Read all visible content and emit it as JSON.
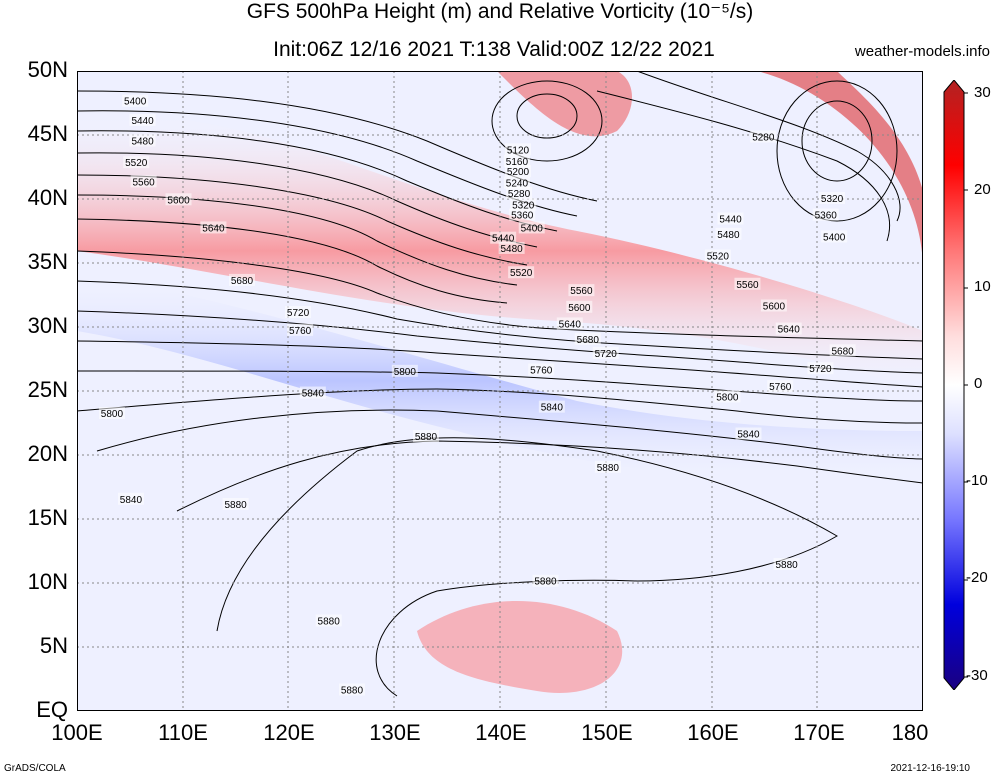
{
  "title_line1": "GFS 500hPa Height (m) and Relative Vorticity (10⁻⁵/s)",
  "title_line2": "Init:06Z 12/16 2021 T:138 Valid:00Z 12/22 2021",
  "website": "weather-models.info",
  "footer_left": "GrADS/COLA",
  "footer_right": "2021-12-16-19:10",
  "lat_labels": [
    "50N",
    "45N",
    "40N",
    "35N",
    "30N",
    "25N",
    "20N",
    "15N",
    "10N",
    "5N",
    "EQ"
  ],
  "lon_labels": [
    "100E",
    "110E",
    "120E",
    "130E",
    "140E",
    "150E",
    "160E",
    "170E",
    "180"
  ],
  "colorbar": {
    "labels": [
      "30",
      "20",
      "10",
      "0",
      "-10",
      "-20",
      "-30"
    ],
    "colors": [
      "#b22222",
      "#ff0000",
      "#ff7777",
      "#ffdddd",
      "#ffffff",
      "#dde0ff",
      "#7777ff",
      "#0000dd",
      "#1a0080"
    ]
  },
  "contour_labels": [
    {
      "text": "5400",
      "lon": 105.5,
      "lat": 47.6
    },
    {
      "text": "5440",
      "lon": 106.2,
      "lat": 46.1
    },
    {
      "text": "5480",
      "lon": 106.2,
      "lat": 44.5
    },
    {
      "text": "5520",
      "lon": 105.6,
      "lat": 42.8
    },
    {
      "text": "5560",
      "lon": 106.3,
      "lat": 41.3
    },
    {
      "text": "5600",
      "lon": 109.6,
      "lat": 39.9
    },
    {
      "text": "5640",
      "lon": 112.9,
      "lat": 37.7
    },
    {
      "text": "5680",
      "lon": 115.6,
      "lat": 33.6
    },
    {
      "text": "5720",
      "lon": 120.9,
      "lat": 31.1
    },
    {
      "text": "5760",
      "lon": 121.1,
      "lat": 29.7
    },
    {
      "text": "5800",
      "lon": 131.0,
      "lat": 26.5
    },
    {
      "text": "5840",
      "lon": 122.3,
      "lat": 24.8
    },
    {
      "text": "5800",
      "lon": 103.3,
      "lat": 23.2
    },
    {
      "text": "5880",
      "lon": 133.0,
      "lat": 21.4
    },
    {
      "text": "5840",
      "lon": 105.1,
      "lat": 16.5
    },
    {
      "text": "5880",
      "lon": 115.0,
      "lat": 16.1
    },
    {
      "text": "5880",
      "lon": 150.2,
      "lat": 19.0
    },
    {
      "text": "5880",
      "lon": 144.3,
      "lat": 10.1
    },
    {
      "text": "5880",
      "lon": 167.1,
      "lat": 11.4
    },
    {
      "text": "5880",
      "lon": 123.8,
      "lat": 7.0
    },
    {
      "text": "5880",
      "lon": 126.0,
      "lat": 1.6
    },
    {
      "text": "5120",
      "lon": 141.7,
      "lat": 43.8
    },
    {
      "text": "5160",
      "lon": 141.6,
      "lat": 42.9
    },
    {
      "text": "5200",
      "lon": 141.7,
      "lat": 42.1
    },
    {
      "text": "5240",
      "lon": 141.6,
      "lat": 41.2
    },
    {
      "text": "5280",
      "lon": 141.8,
      "lat": 40.4
    },
    {
      "text": "5320",
      "lon": 142.2,
      "lat": 39.5
    },
    {
      "text": "5360",
      "lon": 142.1,
      "lat": 38.7
    },
    {
      "text": "5400",
      "lon": 143.0,
      "lat": 37.7
    },
    {
      "text": "5440",
      "lon": 140.3,
      "lat": 36.9
    },
    {
      "text": "5480",
      "lon": 141.1,
      "lat": 36.1
    },
    {
      "text": "5520",
      "lon": 142.0,
      "lat": 34.2
    },
    {
      "text": "5560",
      "lon": 147.7,
      "lat": 32.8
    },
    {
      "text": "5600",
      "lon": 147.5,
      "lat": 31.5
    },
    {
      "text": "5640",
      "lon": 146.6,
      "lat": 30.2
    },
    {
      "text": "5680",
      "lon": 148.3,
      "lat": 29.0
    },
    {
      "text": "5720",
      "lon": 150.0,
      "lat": 27.9
    },
    {
      "text": "5760",
      "lon": 143.9,
      "lat": 26.6
    },
    {
      "text": "5840",
      "lon": 144.9,
      "lat": 23.7
    },
    {
      "text": "5800",
      "lon": 161.5,
      "lat": 24.5
    },
    {
      "text": "5760",
      "lon": 166.5,
      "lat": 25.3
    },
    {
      "text": "5720",
      "lon": 170.3,
      "lat": 26.7
    },
    {
      "text": "5680",
      "lon": 172.4,
      "lat": 28.1
    },
    {
      "text": "5640",
      "lon": 167.3,
      "lat": 29.8
    },
    {
      "text": "5600",
      "lon": 165.9,
      "lat": 31.6
    },
    {
      "text": "5560",
      "lon": 163.4,
      "lat": 33.3
    },
    {
      "text": "5520",
      "lon": 160.6,
      "lat": 35.5
    },
    {
      "text": "5480",
      "lon": 161.6,
      "lat": 37.2
    },
    {
      "text": "5440",
      "lon": 161.8,
      "lat": 38.4
    },
    {
      "text": "5280",
      "lon": 164.9,
      "lat": 44.8
    },
    {
      "text": "5320",
      "lon": 171.4,
      "lat": 40.0
    },
    {
      "text": "5360",
      "lon": 170.8,
      "lat": 38.7
    },
    {
      "text": "5400",
      "lon": 171.6,
      "lat": 37.0
    },
    {
      "text": "5840",
      "lon": 163.5,
      "lat": 21.6
    }
  ]
}
